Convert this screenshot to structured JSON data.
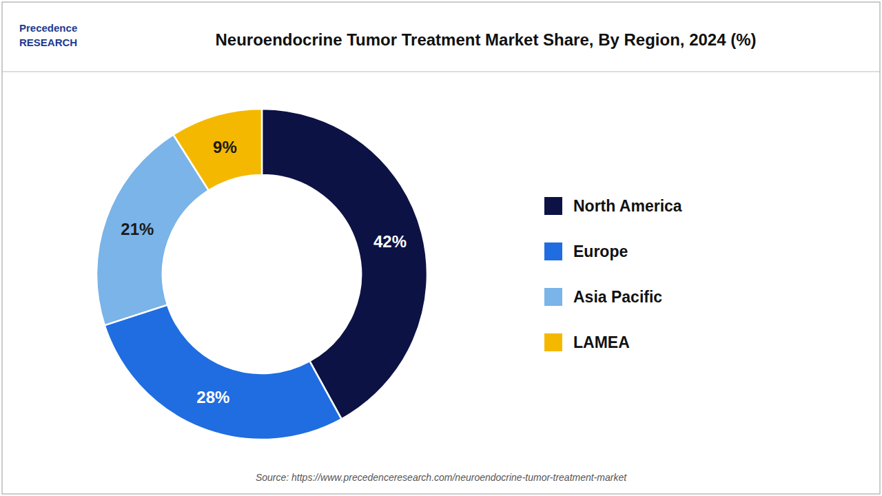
{
  "chart_data": {
    "type": "pie",
    "title": "Neuroendocrine Tumor Treatment Market Share, By Region, 2024 (%)",
    "categories": [
      "North America",
      "Europe",
      "Asia Pacific",
      "LAMEA"
    ],
    "values": [
      42,
      28,
      21,
      9
    ],
    "value_labels": [
      "42%",
      "28%",
      "21%",
      "9%"
    ],
    "colors": [
      "#0d1245",
      "#1f6de0",
      "#7ab4e8",
      "#f5b800"
    ],
    "data_labels": true,
    "legend": "right",
    "annotations": [
      "Precedence\nRESEARCH",
      "Source: https://www.precedenceresearch.com/neuroendocrine-tumor-treatment-market"
    ]
  }
}
